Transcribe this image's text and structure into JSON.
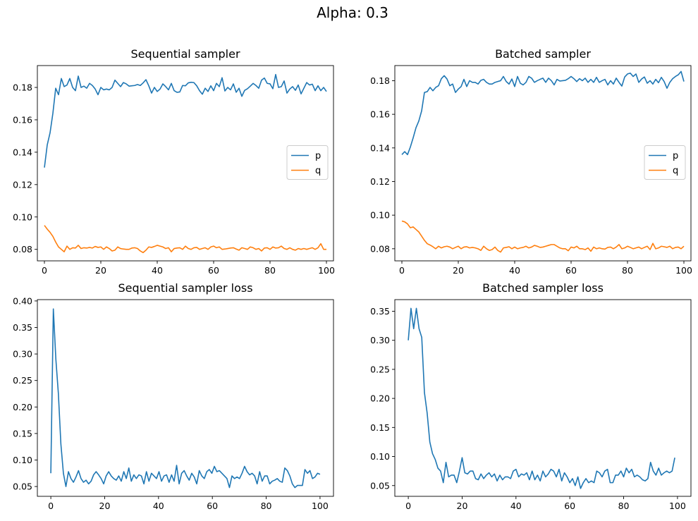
{
  "figure": {
    "suptitle": "Alpha: 0.3"
  },
  "colors": {
    "p": "#1f77b4",
    "q": "#ff7f0e",
    "loss": "#1f77b4"
  },
  "chart_data": [
    {
      "type": "line",
      "title": "Sequential sampler",
      "xlim": [
        -2.5,
        102.5
      ],
      "ylim": [
        0.0729,
        0.1935
      ],
      "xticks": [
        0,
        20,
        40,
        60,
        80,
        100
      ],
      "yticks": [
        0.08,
        0.1,
        0.12,
        0.14,
        0.16,
        0.18
      ],
      "ytick_labels": [
        "0.08",
        "0.10",
        "0.12",
        "0.14",
        "0.16",
        "0.18"
      ],
      "legend": {
        "position": "center right",
        "entries": [
          "p",
          "q"
        ]
      },
      "series": [
        {
          "name": "p",
          "color": "#1f77b4",
          "values": [
            0.1305,
            0.1445,
            0.152,
            0.164,
            0.1795,
            0.1755,
            0.1855,
            0.1805,
            0.1815,
            0.1855,
            0.18,
            0.178,
            0.187,
            0.18,
            0.1808,
            0.1795,
            0.1825,
            0.1812,
            0.179,
            0.1755,
            0.18,
            0.1785,
            0.179,
            0.1785,
            0.18,
            0.1845,
            0.1825,
            0.1805,
            0.183,
            0.1822,
            0.1808,
            0.181,
            0.1812,
            0.1818,
            0.1812,
            0.1828,
            0.1848,
            0.181,
            0.1765,
            0.18,
            0.1775,
            0.179,
            0.1822,
            0.1805,
            0.1785,
            0.1825,
            0.178,
            0.177,
            0.1772,
            0.1812,
            0.181,
            0.1828,
            0.1832,
            0.183,
            0.181,
            0.178,
            0.1758,
            0.1795,
            0.1775,
            0.181,
            0.178,
            0.1825,
            0.1805,
            0.186,
            0.1778,
            0.18,
            0.1785,
            0.1822,
            0.177,
            0.1795,
            0.1745,
            0.1782,
            0.1792,
            0.1808,
            0.1825,
            0.1812,
            0.1795,
            0.1845,
            0.1858,
            0.1825,
            0.1822,
            0.1792,
            0.188,
            0.18,
            0.1805,
            0.184,
            0.1765,
            0.179,
            0.1805,
            0.1782,
            0.1815,
            0.176,
            0.1795,
            0.183,
            0.1815,
            0.182,
            0.178,
            0.181,
            0.178,
            0.18,
            0.1775
          ]
        },
        {
          "name": "q",
          "color": "#ff7f0e",
          "values": [
            0.0948,
            0.0925,
            0.0905,
            0.088,
            0.0845,
            0.0815,
            0.08,
            0.0785,
            0.082,
            0.08,
            0.081,
            0.0808,
            0.0825,
            0.0805,
            0.081,
            0.0808,
            0.0812,
            0.0808,
            0.0818,
            0.0812,
            0.0815,
            0.08,
            0.0815,
            0.0805,
            0.079,
            0.0795,
            0.0815,
            0.0805,
            0.0802,
            0.08,
            0.08,
            0.0808,
            0.081,
            0.0805,
            0.079,
            0.078,
            0.0795,
            0.0815,
            0.0812,
            0.0818,
            0.0825,
            0.082,
            0.0815,
            0.0805,
            0.081,
            0.0785,
            0.0805,
            0.0808,
            0.081,
            0.08,
            0.082,
            0.0805,
            0.08,
            0.081,
            0.0812,
            0.08,
            0.0805,
            0.081,
            0.08,
            0.0815,
            0.082,
            0.081,
            0.0815,
            0.08,
            0.0802,
            0.0805,
            0.0808,
            0.081,
            0.0802,
            0.0795,
            0.081,
            0.0805,
            0.08,
            0.0815,
            0.081,
            0.08,
            0.0805,
            0.079,
            0.0808,
            0.081,
            0.08,
            0.0815,
            0.0808,
            0.081,
            0.082,
            0.0805,
            0.08,
            0.081,
            0.08,
            0.0795,
            0.0805,
            0.08,
            0.0805,
            0.08,
            0.0805,
            0.081,
            0.08,
            0.081,
            0.0835,
            0.08,
            0.08
          ]
        }
      ]
    },
    {
      "type": "line",
      "title": "Batched sampler",
      "xlim": [
        -2.5,
        102.5
      ],
      "ylim": [
        0.0728,
        0.189
      ],
      "xticks": [
        0,
        20,
        40,
        60,
        80,
        100
      ],
      "yticks": [
        0.08,
        0.1,
        0.12,
        0.14,
        0.16,
        0.18
      ],
      "ytick_labels": [
        "0.08",
        "0.10",
        "0.12",
        "0.14",
        "0.16",
        "0.18"
      ],
      "legend": {
        "position": "center right",
        "entries": [
          "p",
          "q"
        ]
      },
      "series": [
        {
          "name": "p",
          "color": "#1f77b4",
          "values": [
            0.136,
            0.1378,
            0.136,
            0.1405,
            0.146,
            0.152,
            0.156,
            0.162,
            0.173,
            0.1735,
            0.176,
            0.174,
            0.176,
            0.177,
            0.1812,
            0.183,
            0.181,
            0.177,
            0.178,
            0.173,
            0.175,
            0.1765,
            0.1808,
            0.1765,
            0.18,
            0.179,
            0.179,
            0.178,
            0.1802,
            0.1808,
            0.179,
            0.178,
            0.178,
            0.179,
            0.1795,
            0.18,
            0.1825,
            0.1795,
            0.178,
            0.181,
            0.1765,
            0.1825,
            0.1785,
            0.1775,
            0.179,
            0.1825,
            0.1815,
            0.179,
            0.18,
            0.1808,
            0.1815,
            0.179,
            0.1815,
            0.18,
            0.1775,
            0.1808,
            0.1798,
            0.18,
            0.1802,
            0.1812,
            0.1825,
            0.1812,
            0.1795,
            0.1812,
            0.18,
            0.1815,
            0.179,
            0.1808,
            0.179,
            0.182,
            0.179,
            0.18,
            0.1808,
            0.1775,
            0.18,
            0.178,
            0.1815,
            0.179,
            0.1768,
            0.1822,
            0.184,
            0.1845,
            0.1825,
            0.184,
            0.179,
            0.181,
            0.1822,
            0.1785,
            0.18,
            0.178,
            0.1808,
            0.1788,
            0.182,
            0.1795,
            0.1755,
            0.179,
            0.1812,
            0.1825,
            0.1835,
            0.1855,
            0.1795
          ]
        },
        {
          "name": "q",
          "color": "#ff7f0e",
          "values": [
            0.0965,
            0.096,
            0.0948,
            0.0925,
            0.093,
            0.0915,
            0.09,
            0.0875,
            0.085,
            0.083,
            0.0822,
            0.0812,
            0.08,
            0.0815,
            0.0805,
            0.0812,
            0.0815,
            0.081,
            0.08,
            0.0808,
            0.0815,
            0.08,
            0.081,
            0.0812,
            0.0805,
            0.0808,
            0.0805,
            0.08,
            0.079,
            0.0815,
            0.08,
            0.079,
            0.0795,
            0.081,
            0.079,
            0.078,
            0.0805,
            0.0808,
            0.0812,
            0.08,
            0.081,
            0.08,
            0.0805,
            0.0808,
            0.0815,
            0.0805,
            0.081,
            0.082,
            0.0815,
            0.0808,
            0.081,
            0.0815,
            0.082,
            0.0825,
            0.0825,
            0.0815,
            0.0805,
            0.08,
            0.08,
            0.0788,
            0.081,
            0.0805,
            0.0815,
            0.08,
            0.08,
            0.0795,
            0.0805,
            0.0785,
            0.081,
            0.08,
            0.0805,
            0.08,
            0.0798,
            0.0808,
            0.081,
            0.08,
            0.081,
            0.0825,
            0.08,
            0.0805,
            0.0815,
            0.0808,
            0.08,
            0.0805,
            0.081,
            0.08,
            0.0808,
            0.0815,
            0.0795,
            0.0832,
            0.08,
            0.0805,
            0.0815,
            0.0812,
            0.0808,
            0.0815,
            0.08,
            0.0808,
            0.081,
            0.08,
            0.0815
          ]
        }
      ]
    },
    {
      "type": "line",
      "title": "Sequential sampler loss",
      "xlim": [
        -5,
        105
      ],
      "ylim": [
        0.0315,
        0.4025
      ],
      "xticks": [
        0,
        20,
        40,
        60,
        80,
        100
      ],
      "yticks": [
        0.05,
        0.1,
        0.15,
        0.2,
        0.25,
        0.3,
        0.35,
        0.4
      ],
      "ytick_labels": [
        "0.05",
        "0.10",
        "0.15",
        "0.20",
        "0.25",
        "0.30",
        "0.35",
        "0.40"
      ],
      "legend": null,
      "series": [
        {
          "name": "",
          "color": "#1f77b4",
          "values": [
            0.075,
            0.385,
            0.29,
            0.225,
            0.13,
            0.075,
            0.05,
            0.078,
            0.065,
            0.058,
            0.068,
            0.08,
            0.065,
            0.058,
            0.062,
            0.055,
            0.06,
            0.072,
            0.078,
            0.072,
            0.065,
            0.055,
            0.07,
            0.078,
            0.07,
            0.065,
            0.062,
            0.07,
            0.06,
            0.078,
            0.065,
            0.085,
            0.06,
            0.072,
            0.065,
            0.072,
            0.07,
            0.055,
            0.078,
            0.06,
            0.075,
            0.07,
            0.065,
            0.078,
            0.06,
            0.07,
            0.072,
            0.058,
            0.072,
            0.06,
            0.09,
            0.055,
            0.075,
            0.08,
            0.07,
            0.062,
            0.075,
            0.068,
            0.055,
            0.08,
            0.07,
            0.065,
            0.078,
            0.082,
            0.075,
            0.088,
            0.078,
            0.08,
            0.075,
            0.07,
            0.065,
            0.048,
            0.07,
            0.065,
            0.068,
            0.065,
            0.075,
            0.088,
            0.078,
            0.072,
            0.075,
            0.07,
            0.055,
            0.078,
            0.06,
            0.07,
            0.07,
            0.055,
            0.06,
            0.062,
            0.065,
            0.06,
            0.058,
            0.085,
            0.08,
            0.07,
            0.055,
            0.048,
            0.052,
            0.052,
            0.052,
            0.082,
            0.075,
            0.08,
            0.065,
            0.068,
            0.075,
            0.073
          ]
        }
      ],
      "x_max": 100
    },
    {
      "type": "line",
      "title": "Batched sampler loss",
      "xlim": [
        -5,
        105
      ],
      "ylim": [
        0.0315,
        0.37
      ],
      "xticks": [
        0,
        20,
        40,
        60,
        80,
        100
      ],
      "yticks": [
        0.05,
        0.1,
        0.15,
        0.2,
        0.25,
        0.3,
        0.35
      ],
      "ytick_labels": [
        "0.05",
        "0.10",
        "0.15",
        "0.20",
        "0.25",
        "0.30",
        "0.35"
      ],
      "legend": null,
      "series": [
        {
          "name": "",
          "color": "#1f77b4",
          "values": [
            0.3,
            0.355,
            0.32,
            0.355,
            0.32,
            0.305,
            0.21,
            0.175,
            0.125,
            0.105,
            0.095,
            0.08,
            0.075,
            0.055,
            0.09,
            0.065,
            0.068,
            0.068,
            0.055,
            0.075,
            0.098,
            0.072,
            0.07,
            0.075,
            0.075,
            0.062,
            0.06,
            0.07,
            0.062,
            0.068,
            0.072,
            0.065,
            0.07,
            0.058,
            0.068,
            0.06,
            0.065,
            0.065,
            0.062,
            0.075,
            0.078,
            0.065,
            0.07,
            0.068,
            0.072,
            0.06,
            0.075,
            0.06,
            0.068,
            0.058,
            0.075,
            0.065,
            0.07,
            0.078,
            0.075,
            0.065,
            0.078,
            0.058,
            0.072,
            0.065,
            0.055,
            0.062,
            0.05,
            0.065,
            0.045,
            0.055,
            0.062,
            0.055,
            0.058,
            0.055,
            0.075,
            0.072,
            0.065,
            0.075,
            0.078,
            0.055,
            0.055,
            0.068,
            0.068,
            0.075,
            0.065,
            0.08,
            0.072,
            0.078,
            0.065,
            0.068,
            0.065,
            0.06,
            0.058,
            0.062,
            0.09,
            0.075,
            0.068,
            0.08,
            0.068,
            0.072,
            0.075,
            0.072,
            0.075,
            0.098
          ]
        }
      ]
    }
  ]
}
